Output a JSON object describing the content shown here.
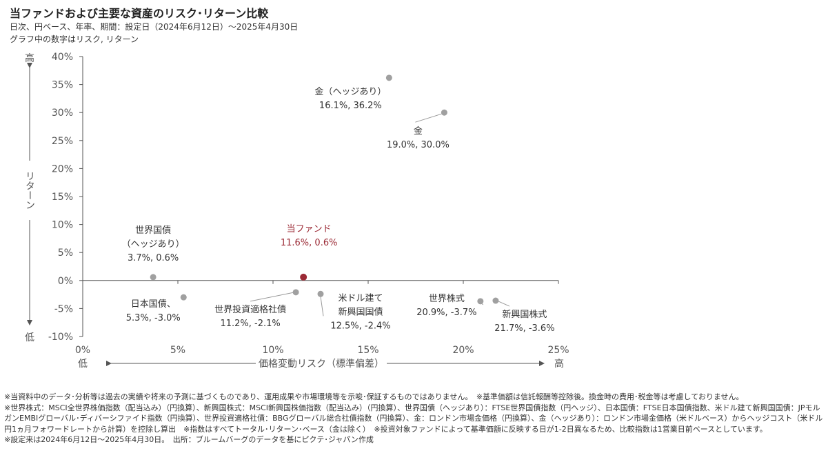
{
  "header": {
    "title": "当ファンドおよび主要な資産のリスク･リターン比較",
    "subtitle1": "日次、円ベース、年率、期間：設定日（2024年6月12日）～2025年4月30日",
    "subtitle2": "グラフ中の数字はリスク, リターン"
  },
  "chart_data": {
    "type": "scatter",
    "xlabel": "価格変動リスク（標準偏差）",
    "ylabel": "リターン",
    "x_low": "低",
    "x_high": "高",
    "y_low": "低",
    "y_high": "高",
    "xlim": [
      0,
      25
    ],
    "ylim": [
      -10,
      40
    ],
    "x_ticks": [
      "0%",
      "5%",
      "10%",
      "15%",
      "20%",
      "25%"
    ],
    "y_ticks": [
      "40%",
      "35%",
      "30%",
      "25%",
      "20%",
      "15%",
      "10%",
      "5%",
      "0%",
      "-5%",
      "-10%"
    ],
    "grid": false,
    "points": [
      {
        "name": "当ファンド",
        "label_lines": [
          "当ファンド",
          "11.6%, 0.6%"
        ],
        "x": 11.6,
        "y": 0.6,
        "highlight": true
      },
      {
        "name": "世界国債（ヘッジあり）",
        "label_lines": [
          "世界国債",
          "（ヘッジあり）",
          "3.7%, 0.6%"
        ],
        "x": 3.7,
        "y": 0.6
      },
      {
        "name": "日本国債",
        "label_lines": [
          "日本国債、",
          "5.3%, -3.0%"
        ],
        "x": 5.3,
        "y": -3.0
      },
      {
        "name": "世界投資適格社債",
        "label_lines": [
          "世界投資適格社債",
          "11.2%, -2.1%"
        ],
        "x": 11.2,
        "y": -2.1
      },
      {
        "name": "米ドル建て新興国国債",
        "label_lines": [
          "米ドル建て",
          "新興国国債",
          "12.5%, -2.4%"
        ],
        "x": 12.5,
        "y": -2.4
      },
      {
        "name": "世界株式",
        "label_lines": [
          "世界株式",
          "20.9%, -3.7%"
        ],
        "x": 20.9,
        "y": -3.7
      },
      {
        "name": "新興国株式",
        "label_lines": [
          "新興国株式",
          "21.7%, -3.6%"
        ],
        "x": 21.7,
        "y": -3.6
      },
      {
        "name": "金",
        "label_lines": [
          "金",
          "19.0%, 30.0%"
        ],
        "x": 19.0,
        "y": 30.0
      },
      {
        "name": "金（ヘッジあり）",
        "label_lines": [
          "金（ヘッジあり）",
          "16.1%, 36.2%"
        ],
        "x": 16.1,
        "y": 36.2
      }
    ],
    "colors": {
      "point": "#a0a0a0",
      "highlight": "#9b2a35",
      "axis": "#555555"
    }
  },
  "notes": {
    "line1": "※当資料中のデータ･分析等は過去の実績や将来の予測に基づくものであり、運用成果や市場環境等を示唆･保証するものではありません。　※基準価額は信託報酬等控除後。換金時の費用･税金等は考慮しておりません。",
    "line2": "※世界株式：MSCI全世界株価指数（配当込み）（円換算）、新興国株式：MSCI新興国株価指数（配当込み）（円換算）、世界国債（ヘッジあり）：FTSE世界国債指数（円ヘッジ）、日本国債：FTSE日本国債指数、米ドル建て新興国国債：JPモルガンEMBIグローバル･ディバーシファイド指数（円換算）、世界投資適格社債：BBGグローバル総合社債指数（円換算）、金：ロンドン市場金価格（円換算）、金（ヘッジあり）：ロンドン市場金価格（米ドルベース）からヘッジコスト（米ドル円1ヵ月フォワードレートから計算）を控除し算出　※指数はすべてトータル･リターン･ベース（金は除く）　※投資対象ファンドによって基準価額に反映する日が1-2日異なるため、比較指数は1営業日前ベースとしています。",
    "line3": "※設定来は2024年6月12日～2025年4月30日。　出所：ブルームバーグのデータを基にピクテ･ジャパン作成"
  }
}
